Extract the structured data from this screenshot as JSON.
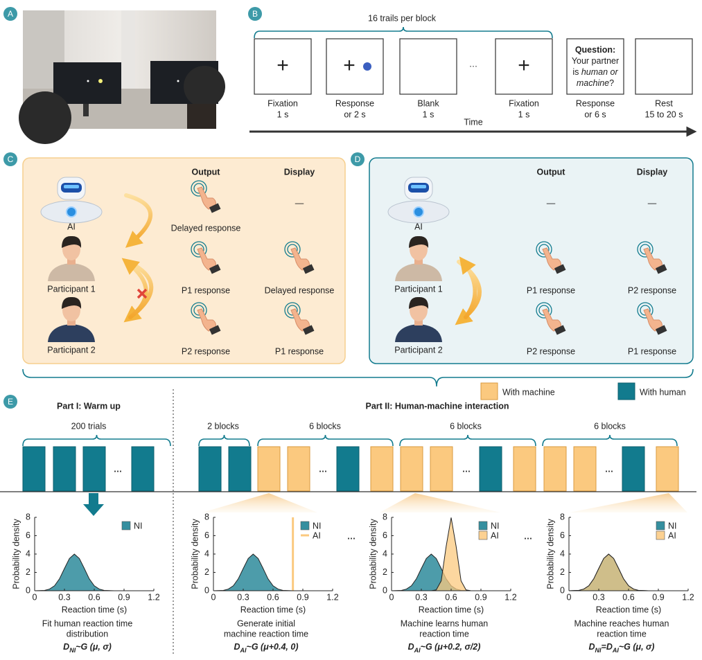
{
  "panel_labels": [
    "A",
    "B",
    "C",
    "D",
    "E"
  ],
  "trial": {
    "block_label": "16 trails per block",
    "ellipsis": "…",
    "time_label": "Time",
    "events": [
      {
        "lines": [
          "Fixation",
          "1 s"
        ],
        "symbol": "+"
      },
      {
        "lines": [
          "Response",
          "or 2 s"
        ],
        "symbol": "+",
        "probe": true
      },
      {
        "lines": [
          "Blank",
          "1 s"
        ]
      },
      {
        "lines": [
          "Fixation",
          "1 s"
        ],
        "symbol": "+"
      },
      {
        "lines": [
          "Response",
          "or 6 s"
        ],
        "question": [
          [
            {
              "text": "Question:"
            }
          ],
          [
            {
              "text": "Your partner"
            }
          ],
          [
            {
              "text": "is "
            },
            {
              "text": "human or",
              "italic": true
            }
          ],
          [
            {
              "text": "machine",
              "italic": true
            },
            {
              "text": "?"
            }
          ]
        ]
      },
      {
        "lines": [
          "Rest",
          "15 to 20 s"
        ]
      }
    ]
  },
  "conditions": [
    {
      "headers": [
        "Output",
        "Display"
      ],
      "rows": [
        {
          "agent": "AI",
          "output": "Delayed response",
          "display": "—"
        },
        {
          "agent": "Participant 1",
          "output": "P1 response",
          "display": "Delayed response"
        },
        {
          "agent": "Participant 2",
          "output": "P2 response",
          "display": "P1 response"
        }
      ]
    },
    {
      "headers": [
        "Output",
        "Display"
      ],
      "rows": [
        {
          "agent": "AI",
          "output": "—",
          "display": "—"
        },
        {
          "agent": "Participant 1",
          "output": "P1 response",
          "display": "P2 response"
        },
        {
          "agent": "Participant 2",
          "output": "P2 response",
          "display": "P1 response"
        }
      ]
    }
  ],
  "legend": [
    {
      "name": "With machine",
      "color": "#fbc97f"
    },
    {
      "name": "With human",
      "color": "#127b8e"
    }
  ],
  "design": {
    "parts": [
      "Part I: Warm up",
      "Part II: Human-machine interaction"
    ],
    "braces": [
      "200 trials",
      "2 blocks",
      "6 blocks",
      "6 blocks",
      "6 blocks"
    ],
    "ellipsis": "…"
  },
  "chart_data": [
    {
      "type": "area",
      "ylabel": "Probability density",
      "xlabel": "Reaction time (s)",
      "xlim": [
        0,
        1.2
      ],
      "ylim": [
        0,
        8
      ],
      "xticks": [
        0,
        0.3,
        0.6,
        0.9,
        1.2
      ],
      "yticks": [
        0,
        2,
        4,
        6,
        8
      ],
      "series": [
        {
          "name": "NI",
          "color": "#127b8e",
          "x": [
            0,
            0.1,
            0.15,
            0.2,
            0.25,
            0.3,
            0.35,
            0.4,
            0.45,
            0.5,
            0.55,
            0.6,
            0.65,
            0.7,
            0.8,
            1.2
          ],
          "values": [
            0,
            0.04,
            0.18,
            0.54,
            1.3,
            2.42,
            3.52,
            3.99,
            3.52,
            2.42,
            1.3,
            0.54,
            0.18,
            0.04,
            0,
            0
          ]
        }
      ],
      "caption": [
        "Fit human reaction time",
        "distribution"
      ],
      "formula": [
        {
          "text": "D"
        },
        {
          "text": "NI",
          "sub": true
        },
        {
          "text": "~G (μ, σ)"
        }
      ]
    },
    {
      "type": "area",
      "ylabel": "Probability density",
      "xlabel": "Reaction time (s)",
      "xlim": [
        0,
        1.2
      ],
      "ylim": [
        0,
        8
      ],
      "xticks": [
        0,
        0.3,
        0.6,
        0.9,
        1.2
      ],
      "yticks": [
        0,
        2,
        4,
        6,
        8
      ],
      "series": [
        {
          "name": "NI",
          "color": "#127b8e",
          "x": [
            0,
            0.1,
            0.15,
            0.2,
            0.25,
            0.3,
            0.35,
            0.4,
            0.45,
            0.5,
            0.55,
            0.6,
            0.65,
            0.7,
            0.8,
            1.2
          ],
          "values": [
            0,
            0.04,
            0.18,
            0.54,
            1.3,
            2.42,
            3.52,
            3.99,
            3.52,
            2.42,
            1.3,
            0.54,
            0.18,
            0.04,
            0,
            0
          ]
        },
        {
          "name": "AI",
          "color": "#fbc97f",
          "style": "line",
          "x": [
            0.8,
            0.8
          ],
          "values": [
            0,
            8
          ]
        }
      ],
      "caption": [
        "Generate initial",
        "machine reaction time"
      ],
      "formula": [
        {
          "text": "D"
        },
        {
          "text": "AI",
          "sub": true
        },
        {
          "text": "~G (μ+0.4, 0)"
        }
      ]
    },
    {
      "type": "area",
      "ylabel": "Probability density",
      "xlabel": "Reaction time (s)",
      "xlim": [
        0,
        1.2
      ],
      "ylim": [
        0,
        8
      ],
      "xticks": [
        0,
        0.3,
        0.6,
        0.9,
        1.2
      ],
      "yticks": [
        0,
        2,
        4,
        6,
        8
      ],
      "series": [
        {
          "name": "NI",
          "color": "#127b8e",
          "x": [
            0,
            0.1,
            0.15,
            0.2,
            0.25,
            0.3,
            0.35,
            0.4,
            0.45,
            0.5,
            0.55,
            0.6,
            0.65,
            0.7,
            0.8,
            1.2
          ],
          "values": [
            0,
            0.04,
            0.18,
            0.54,
            1.3,
            2.42,
            3.52,
            3.99,
            3.52,
            2.42,
            1.3,
            0.54,
            0.18,
            0.04,
            0,
            0
          ]
        },
        {
          "name": "AI",
          "color": "#fbc97f",
          "x": [
            0.4,
            0.45,
            0.5,
            0.55,
            0.6,
            0.65,
            0.7,
            0.75,
            0.8
          ],
          "values": [
            0,
            0.09,
            1.08,
            4.84,
            7.98,
            4.84,
            1.08,
            0.09,
            0
          ]
        }
      ],
      "caption": [
        "Machine learns human",
        "reaction time"
      ],
      "formula": [
        {
          "text": "D"
        },
        {
          "text": "AI",
          "sub": true
        },
        {
          "text": "~G (μ+0.2, σ/2)"
        }
      ]
    },
    {
      "type": "area",
      "ylabel": "Probability density",
      "xlabel": "Reaction time (s)",
      "xlim": [
        0,
        1.2
      ],
      "ylim": [
        0,
        8
      ],
      "xticks": [
        0,
        0.3,
        0.6,
        0.9,
        1.2
      ],
      "yticks": [
        0,
        2,
        4,
        6,
        8
      ],
      "series": [
        {
          "name": "NI",
          "color": "#127b8e",
          "x": [
            0,
            0.1,
            0.15,
            0.2,
            0.25,
            0.3,
            0.35,
            0.4,
            0.45,
            0.5,
            0.55,
            0.6,
            0.65,
            0.7,
            0.8,
            1.2
          ],
          "values": [
            0,
            0.04,
            0.18,
            0.54,
            1.3,
            2.42,
            3.52,
            3.99,
            3.52,
            2.42,
            1.3,
            0.54,
            0.18,
            0.04,
            0,
            0
          ]
        },
        {
          "name": "AI",
          "color": "#fbc97f",
          "x": [
            0,
            0.1,
            0.15,
            0.2,
            0.25,
            0.3,
            0.35,
            0.4,
            0.45,
            0.5,
            0.55,
            0.6,
            0.65,
            0.7,
            0.8,
            1.2
          ],
          "values": [
            0,
            0.04,
            0.18,
            0.54,
            1.3,
            2.42,
            3.52,
            3.99,
            3.52,
            2.42,
            1.3,
            0.54,
            0.18,
            0.04,
            0,
            0
          ]
        }
      ],
      "caption": [
        "Machine reaches human",
        "reaction time"
      ],
      "formula": [
        {
          "text": "D"
        },
        {
          "text": "NI",
          "sub": true
        },
        {
          "text": "=D"
        },
        {
          "text": "AI",
          "sub": true
        },
        {
          "text": "~G (μ, σ)"
        }
      ]
    }
  ]
}
